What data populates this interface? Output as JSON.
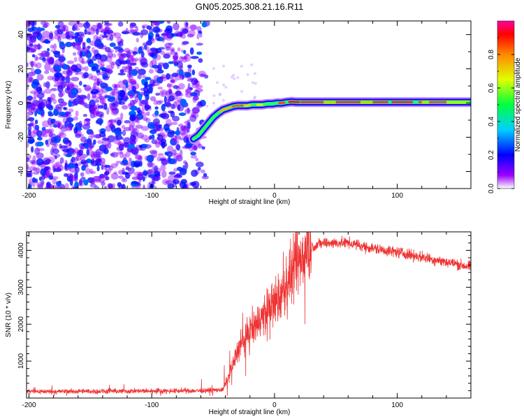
{
  "title": "GN05.2025.308.21.16.R11",
  "chart_data": [
    {
      "type": "heatmap",
      "xlabel": "Height of straight line (km)",
      "ylabel": "Frequency (Hz)",
      "xlim": [
        -202,
        160
      ],
      "ylim": [
        -50,
        48
      ],
      "xticks": [
        -200,
        -100,
        0,
        100
      ],
      "yticks": [
        -40,
        -20,
        0,
        20,
        40
      ],
      "ridge": {
        "x": [
          -66,
          -62,
          -58,
          -54,
          -50,
          -46,
          -42,
          -38,
          -34,
          -30,
          -26,
          -22,
          -18,
          -14,
          -10,
          -6,
          -2,
          2,
          6,
          10,
          14,
          18,
          160
        ],
        "y": [
          -21,
          -19,
          -15.5,
          -12,
          -8.5,
          -6,
          -4,
          -3,
          -2,
          -1.5,
          -1.5,
          -1.5,
          -1,
          -1,
          -1,
          -0.5,
          -0.5,
          0,
          0,
          0.5,
          0.8,
          0.5,
          0.5
        ]
      },
      "noise_region_x": [
        -202,
        -55
      ],
      "colorbar": {
        "label": "Normalized spectral amplitude",
        "range": [
          0,
          1
        ],
        "ticks": [
          "0.0",
          "0.2",
          "0.4",
          "0.6",
          "0.8"
        ],
        "tick_values": [
          0,
          0.2,
          0.4,
          0.6,
          0.8
        ]
      }
    },
    {
      "type": "line",
      "xlabel": "Height of straight line (km)",
      "ylabel": "SNR (10 * v/v)",
      "xlim": [
        -202,
        160
      ],
      "ylim": [
        0,
        4500
      ],
      "xticks": [
        -200,
        -100,
        0,
        100
      ],
      "yticks": [
        1000,
        2000,
        3000,
        4000
      ],
      "color": "#ee3333",
      "trend": {
        "x": [
          -202,
          -150,
          -100,
          -60,
          -42,
          -35,
          -30,
          -20,
          -10,
          -5,
          5,
          10,
          20,
          30,
          40,
          60,
          80,
          100,
          130,
          160
        ],
        "y": [
          180,
          180,
          190,
          200,
          220,
          800,
          1300,
          1800,
          2200,
          2400,
          2750,
          3100,
          3700,
          4100,
          4200,
          4200,
          4050,
          3950,
          3750,
          3550
        ]
      }
    }
  ]
}
